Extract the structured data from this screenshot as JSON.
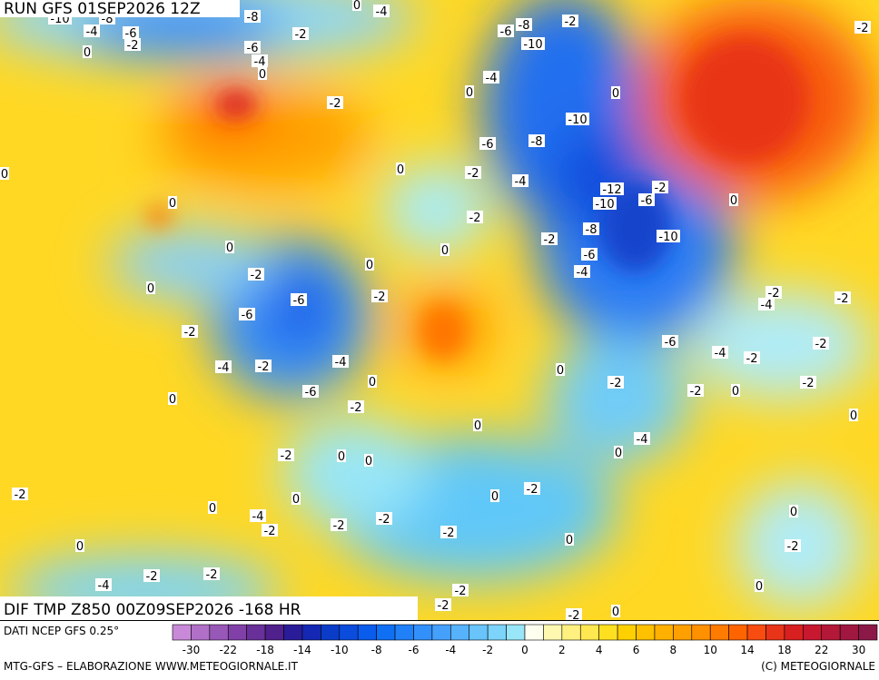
{
  "header": {
    "title": "RUN GFS 01SEP2026 12Z"
  },
  "map": {
    "field_title": "DIF TMP Z850 00Z09SEP2026 -168 HR",
    "contour_labels": [
      -10,
      -8,
      -8,
      -4,
      -6,
      -2,
      0,
      -6,
      -4,
      0,
      -2,
      -4,
      0,
      -6,
      -8,
      -10,
      -2,
      -2,
      -4,
      0,
      0,
      -2,
      -10,
      -8,
      -6,
      0,
      0,
      -2,
      -4,
      -12,
      -2,
      -10,
      -6,
      0,
      0,
      -2,
      -8,
      -2,
      -10,
      0,
      0,
      -6,
      0,
      -2,
      -4,
      0,
      -2,
      -6,
      -2,
      -2,
      -4,
      -6,
      -2,
      -6,
      -2,
      -4,
      -2,
      -4,
      -2,
      -4,
      0,
      0,
      -2,
      -2,
      0,
      -2,
      0,
      -6,
      -2,
      0,
      0,
      -4,
      0,
      -2,
      0,
      0,
      -2,
      0,
      0,
      -2,
      0,
      0,
      -4,
      -2,
      -2,
      -2,
      -2,
      0,
      0,
      -2,
      -4,
      -2,
      -2,
      -2,
      0,
      -2,
      -2,
      0
    ]
  },
  "legend": {
    "source": "DATI NCEP GFS 0.25°",
    "labels": [
      -30,
      -22,
      -18,
      -14,
      -10,
      -8,
      -6,
      -4,
      -2,
      0,
      2,
      4,
      6,
      8,
      10,
      14,
      18,
      22,
      30
    ],
    "colors": [
      "#c88ad8",
      "#b070c8",
      "#9858b8",
      "#8040a8",
      "#683098",
      "#50208c",
      "#2a1c98",
      "#1428b4",
      "#0a3cc8",
      "#0a4cdc",
      "#0a5cec",
      "#1070f4",
      "#2080f8",
      "#3290fa",
      "#44a0fa",
      "#56b2fa",
      "#68c4fa",
      "#7cd4fa",
      "#98e6f8",
      "#fffff0",
      "#fff8b0",
      "#fff080",
      "#ffe850",
      "#ffe020",
      "#ffd000",
      "#ffc000",
      "#ffb000",
      "#ffa000",
      "#ff9000",
      "#ff7c00",
      "#ff6400",
      "#f84c10",
      "#e83418",
      "#d82020",
      "#c81830",
      "#b41838",
      "#a01840",
      "#8c1848"
    ]
  },
  "footer": {
    "credit": "MTG-GFS – ELABORAZIONE WWW.METEOGIORNALE.IT",
    "copyright": "(C) METEOGIORNALE"
  }
}
